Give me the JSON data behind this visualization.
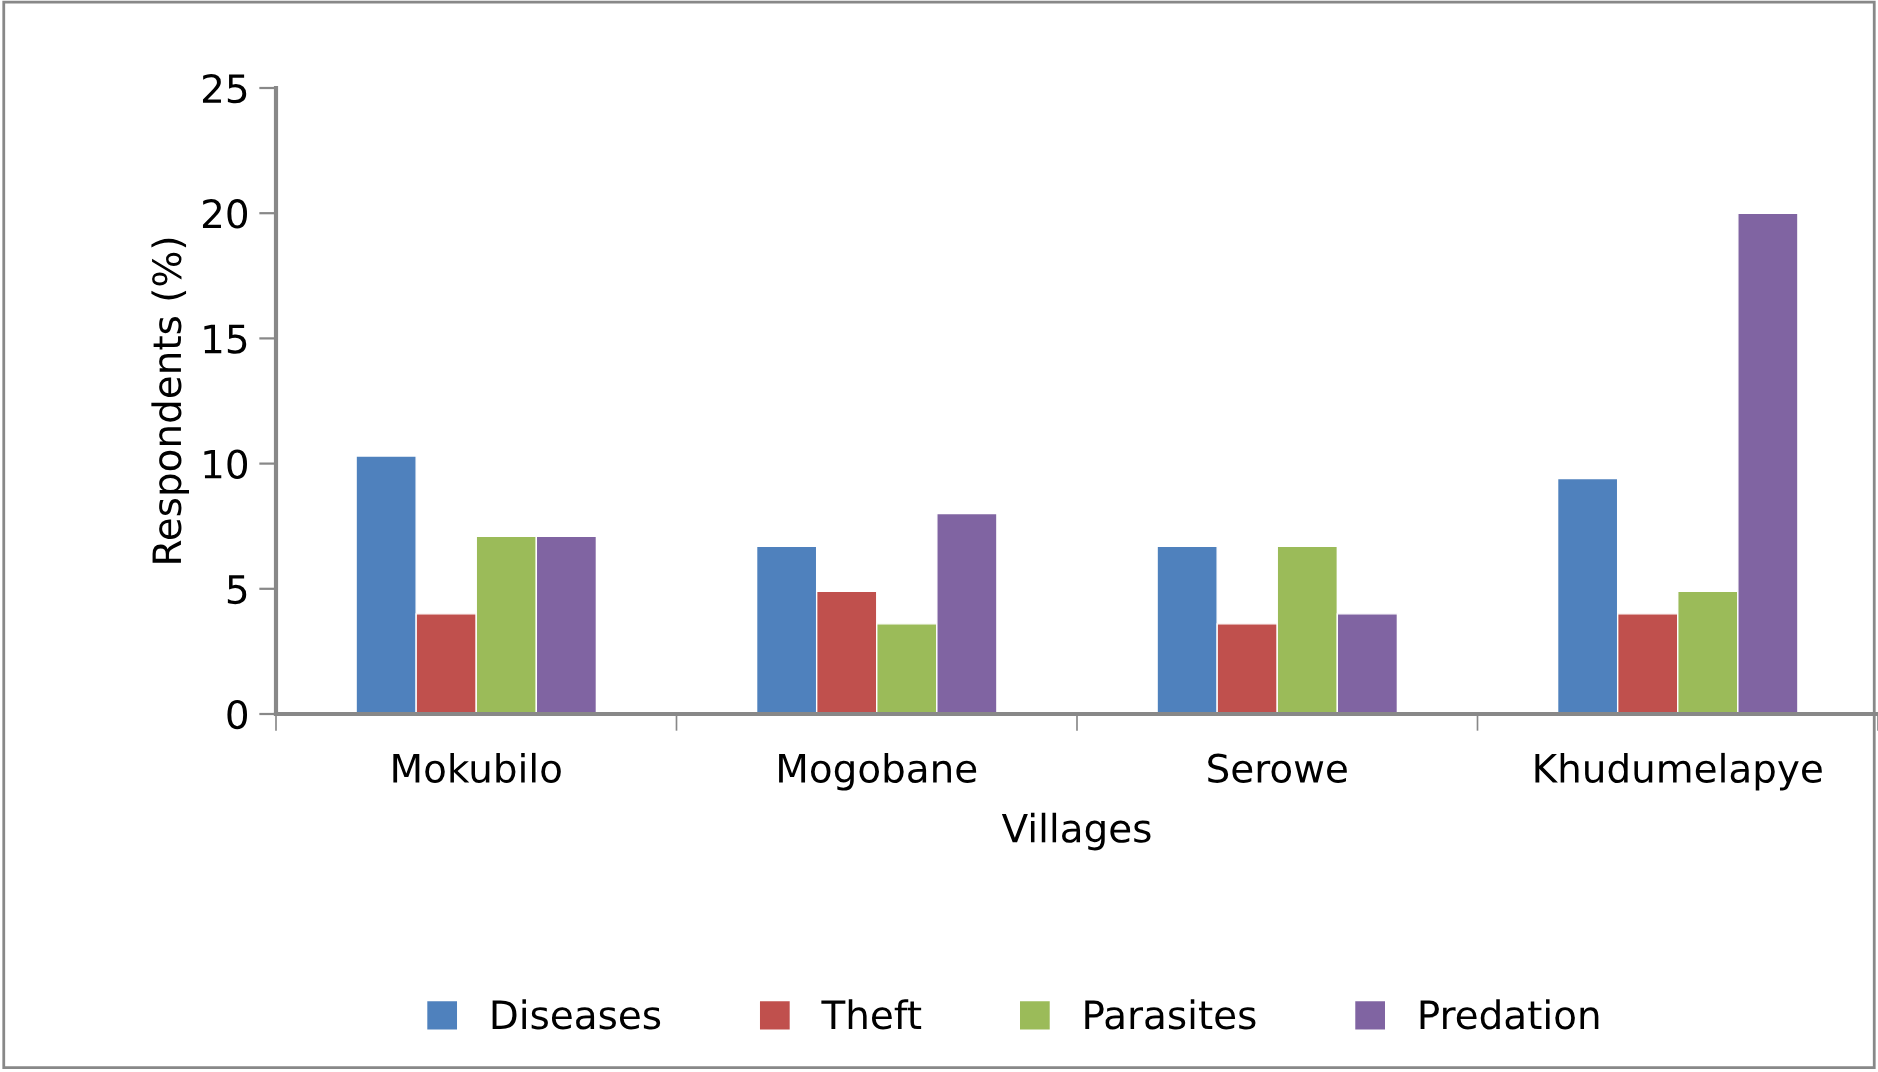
{
  "chart_data": {
    "type": "bar",
    "xlabel": "Villages",
    "ylabel": "Respondents (%)",
    "categories": [
      "Mokubilo",
      "Mogobane",
      "Serowe",
      "Khudumelapye"
    ],
    "series": [
      {
        "name": "Diseases",
        "color": "#4f81bd",
        "values": [
          10.3,
          6.7,
          6.7,
          9.4
        ]
      },
      {
        "name": "Theft",
        "color": "#c0504d",
        "values": [
          4.0,
          4.9,
          3.6,
          4.0
        ]
      },
      {
        "name": "Parasites",
        "color": "#9bbb59",
        "values": [
          7.1,
          3.6,
          6.7,
          4.9
        ]
      },
      {
        "name": "Predation",
        "color": "#8064a2",
        "values": [
          7.1,
          8.0,
          4.0,
          20.0
        ]
      }
    ],
    "ylim": [
      0,
      25
    ],
    "yticks": [
      0,
      5,
      10,
      15,
      20,
      25
    ],
    "grid": false,
    "legend": "bottom"
  }
}
